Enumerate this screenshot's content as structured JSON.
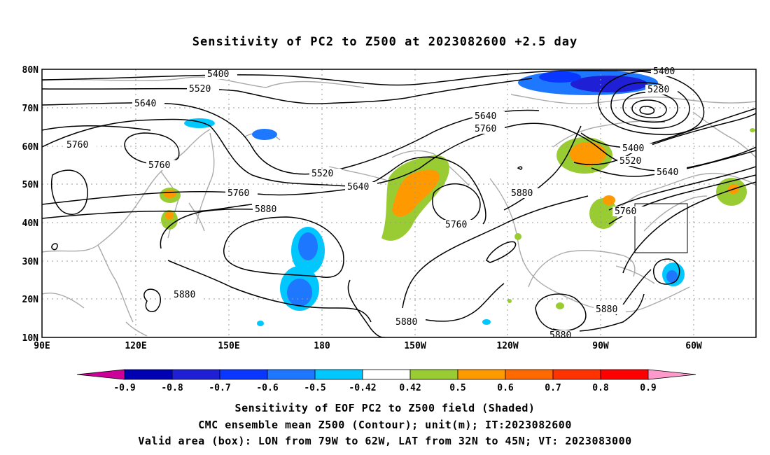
{
  "title": "Sensitivity of PC2 to Z500 at 2023082600 +2.5 day",
  "map": {
    "lon_labels": [
      "90E",
      "120E",
      "150E",
      "180",
      "150W",
      "120W",
      "90W",
      "60W"
    ],
    "lat_labels": [
      "80N",
      "70N",
      "60N",
      "50N",
      "40N",
      "30N",
      "20N",
      "10N"
    ],
    "contour_labels": [
      "5400",
      "5520",
      "5640",
      "5760",
      "5760",
      "5880",
      "5880",
      "5520",
      "5640",
      "5760",
      "5640",
      "5760",
      "5760",
      "5880",
      "5880",
      "5880",
      "5880",
      "5400",
      "5280",
      "5400",
      "5520",
      "5640",
      "5760"
    ],
    "colors": {
      "strong_negative": "#1f1fd6",
      "negative": "#1e78ff",
      "weak_negative": "#00c8ff",
      "weak_positive": "#99cc33",
      "positive": "#ff9900"
    }
  },
  "colorbar": {
    "labels": [
      "-0.9",
      "-0.8",
      "-0.7",
      "-0.6",
      "-0.5",
      "-0.42",
      "0.42",
      "0.5",
      "0.6",
      "0.7",
      "0.8",
      "0.9"
    ],
    "colors": [
      "#cc0099",
      "#0000b3",
      "#1f1fd6",
      "#0a37ff",
      "#1e78ff",
      "#00c8ff",
      "#ffffff",
      "#99cc33",
      "#ff9900",
      "#ff6a00",
      "#ff3300",
      "#ff0000",
      "#ff99cc"
    ]
  },
  "captions": {
    "line1": "Sensitivity of EOF PC2 to Z500 field (Shaded)",
    "line2": "CMC ensemble mean Z500 (Contour); unit(m); IT:2023082600",
    "line3": "Valid area (box): LON from 79W to 62W, LAT from 32N to 45N; VT: 2023083000"
  }
}
